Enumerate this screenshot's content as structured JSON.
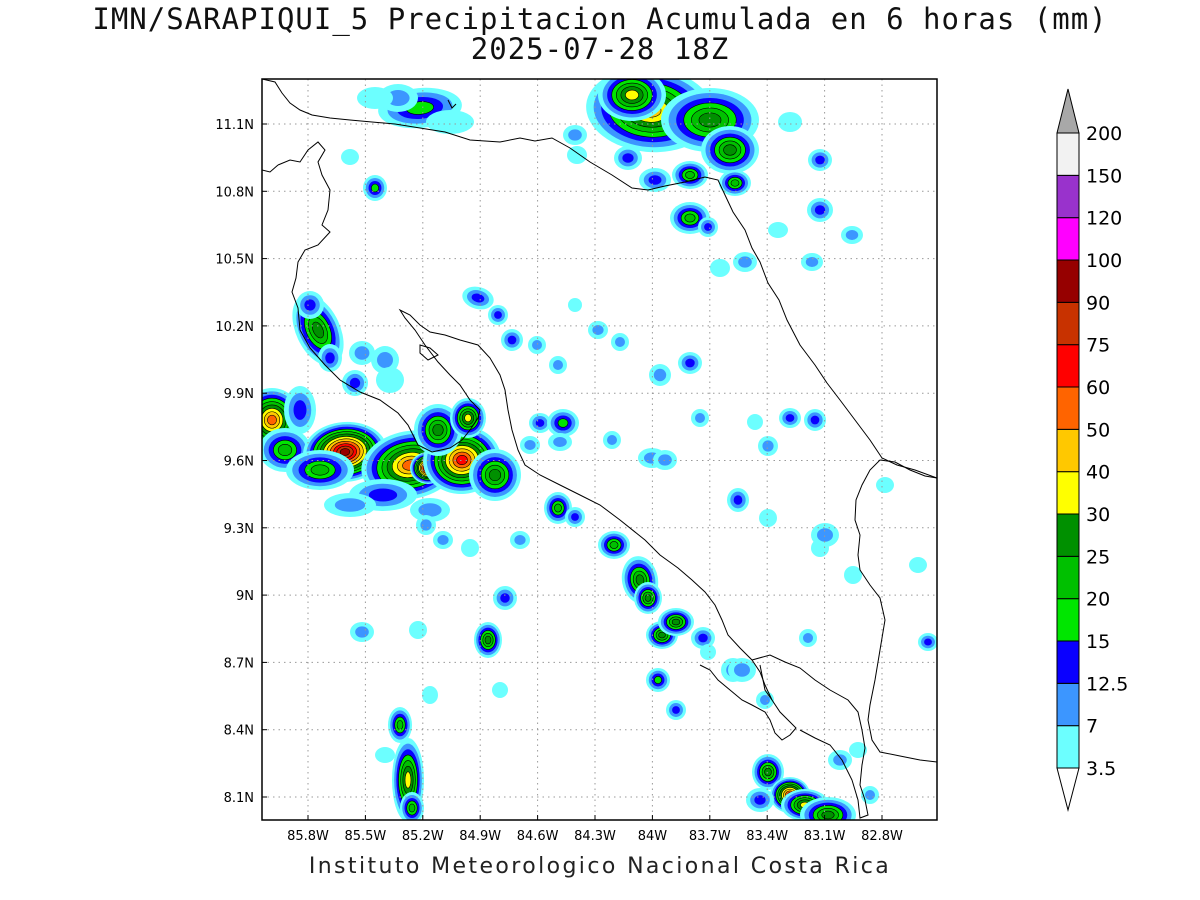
{
  "header": {
    "title": "IMN/SARAPIQUI_5 Precipitacion Acumulada en 6 horas (mm)",
    "subtitle": "2025-07-28 18Z"
  },
  "footer": {
    "credit": "Instituto Meteorologico Nacional Costa Rica"
  },
  "map": {
    "lon_labels": [
      "85.8W",
      "85.5W",
      "85.2W",
      "84.9W",
      "84.6W",
      "84.3W",
      "84W",
      "83.7W",
      "83.4W",
      "83.1W",
      "82.8W"
    ],
    "lat_labels": [
      "11.1N",
      "10.8N",
      "10.5N",
      "10.2N",
      "9.9N",
      "9.6N",
      "9.3N",
      "9N",
      "8.7N",
      "8.4N",
      "8.1N"
    ],
    "lon_values": [
      -85.8,
      -85.5,
      -85.2,
      -84.9,
      -84.6,
      -84.3,
      -84.0,
      -83.7,
      -83.4,
      -83.1,
      -82.8
    ],
    "lat_values": [
      11.1,
      10.8,
      10.5,
      10.2,
      9.9,
      9.6,
      9.3,
      9.0,
      8.7,
      8.4,
      8.1
    ],
    "grid": true
  },
  "colorbar": {
    "labels": [
      "3.5",
      "7",
      "12.5",
      "15",
      "20",
      "25",
      "30",
      "40",
      "50",
      "60",
      "75",
      "90",
      "100",
      "120",
      "150",
      "200"
    ],
    "colors": [
      "#6cffff",
      "#3c96ff",
      "#0a00ff",
      "#00e600",
      "#00c000",
      "#009000",
      "#ffff00",
      "#ffc800",
      "#ff6400",
      "#ff0000",
      "#c83200",
      "#960000",
      "#ff00ff",
      "#9932cc",
      "#f2f2f2",
      "#a8a8a8"
    ]
  },
  "colors": {
    "gridline": "#9a9a9a",
    "coastline": "#000000",
    "frame": "#000000"
  }
}
